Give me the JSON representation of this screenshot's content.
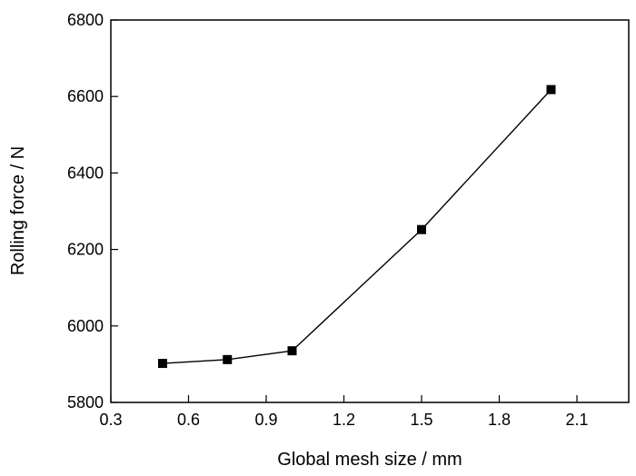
{
  "chart_data": {
    "type": "line",
    "title": "",
    "xlabel": "Global mesh size / mm",
    "ylabel": "Rolling force / N",
    "xlim": [
      0.3,
      2.3
    ],
    "ylim": [
      5800,
      6800
    ],
    "x_ticks": [
      "0.3",
      "0.6",
      "0.9",
      "1.2",
      "1.5",
      "1.8",
      "2.1"
    ],
    "y_ticks": [
      "5800",
      "6000",
      "6200",
      "6400",
      "6600",
      "6800"
    ],
    "grid": false,
    "legend": "none",
    "series": [
      {
        "marker": "square",
        "color": "#000000",
        "x": [
          0.5,
          0.75,
          1.0,
          1.5,
          2.0
        ],
        "y": [
          5902,
          5912,
          5935,
          6252,
          6618
        ]
      }
    ]
  }
}
